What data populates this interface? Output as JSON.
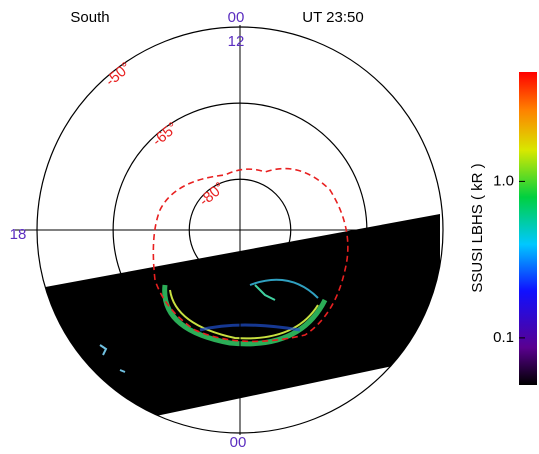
{
  "header": {
    "hemisphere": "South",
    "time": "UT 23:50"
  },
  "clock_labels": {
    "top_outer": "00",
    "top_inner": "12",
    "left": "18",
    "bottom": "00"
  },
  "latitudes": [
    {
      "value": -50,
      "label": "-50°"
    },
    {
      "value": -65,
      "label": "-65°"
    },
    {
      "value": -80,
      "label": "-80°"
    }
  ],
  "colorbar": {
    "label": "SSUSI LBHS  ( kR )",
    "log": true,
    "clim": [
      0.05,
      5
    ],
    "ticks": [
      {
        "value": 0.1,
        "label": "0.1"
      },
      {
        "value": 1,
        "label": "1.0"
      }
    ]
  }
}
